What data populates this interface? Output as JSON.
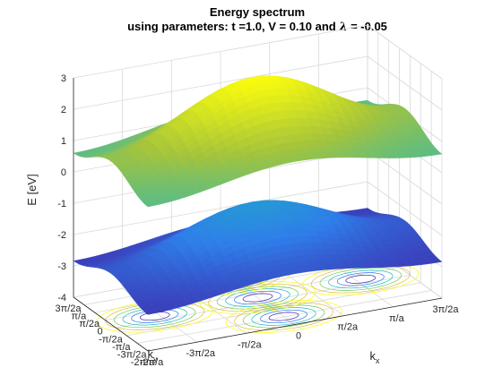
{
  "chart_data": {
    "type": "surface",
    "title": "Energy spectrum",
    "subtitle_prefix": "using parameters: t =1.0, V = 0.10 and ",
    "subtitle_symbol": "λ",
    "subtitle_suffix": " = -0.05",
    "parameters": {
      "t": 1.0,
      "V": 0.1,
      "lambda": -0.05
    },
    "zlabel": "E [eV]",
    "xlabel_base": "k",
    "xlabel_sub": "x",
    "ylabel_base": "k",
    "ylabel_sub": "y",
    "zlim": [
      -4,
      3
    ],
    "zticks": [
      "-4",
      "-3",
      "-2",
      "-1",
      "0",
      "1",
      "2",
      "3"
    ],
    "xticks": [
      "-2π/a",
      "-3π/2a",
      "-π/2a",
      "0",
      "π/2a",
      "π/a",
      "3π/2a"
    ],
    "yticks": [
      "3π/2a",
      "π/a",
      "π/2a",
      "0",
      "-π/2a",
      "-π/a",
      "-3π/2a",
      "-2π/a"
    ],
    "grid": true,
    "colormap": "parula",
    "colors": {
      "low": "#3e26a8",
      "mid": "#1fb5c1",
      "high": "#f9fb0e"
    },
    "series": [
      {
        "band": "upper",
        "range": [
          0.0,
          3.0
        ]
      },
      {
        "band": "lower",
        "range": [
          -3.3,
          -1.0
        ]
      }
    ],
    "floor_contour": true,
    "floor_z": -4
  }
}
